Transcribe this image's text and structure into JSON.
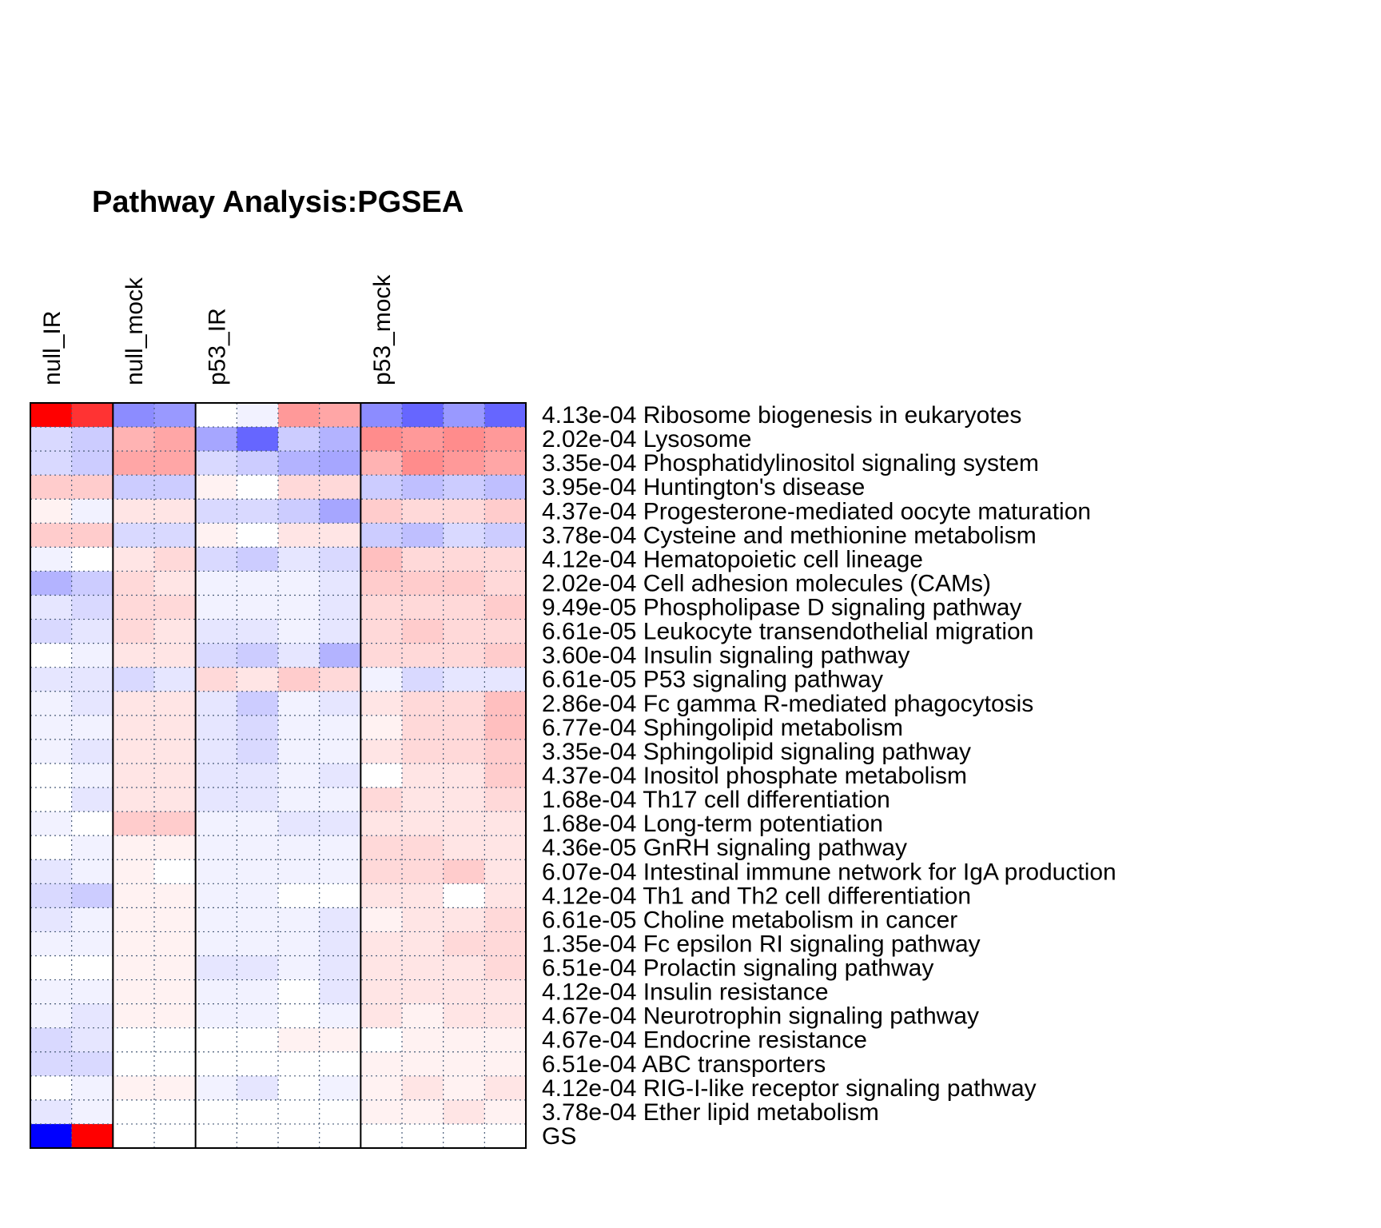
{
  "chart_data": {
    "type": "heatmap",
    "title": "Pathway Analysis:PGSEA",
    "color_scale": {
      "low": "#0000ff",
      "mid": "#ffffff",
      "high": "#ff0000",
      "range": [
        -1,
        1
      ]
    },
    "groups": [
      {
        "label": "null_IR",
        "columns": 2
      },
      {
        "label": "null_mock",
        "columns": 2
      },
      {
        "label": "p53_IR",
        "columns": 4
      },
      {
        "label": "p53_mock",
        "columns": 4
      }
    ],
    "rows": [
      {
        "pvalue": "4.13e-04",
        "pathway": "Ribosome biogenesis in eukaryotes",
        "values": [
          1.0,
          0.8,
          -0.45,
          -0.4,
          0.0,
          -0.05,
          0.4,
          0.35,
          -0.45,
          -0.6,
          -0.4,
          -0.6
        ]
      },
      {
        "pvalue": "2.02e-04",
        "pathway": "Lysosome",
        "values": [
          -0.15,
          -0.2,
          0.3,
          0.35,
          -0.35,
          -0.6,
          -0.2,
          -0.3,
          0.45,
          0.4,
          0.45,
          0.4
        ]
      },
      {
        "pvalue": "3.35e-04",
        "pathway": "Phosphatidylinositol signaling system",
        "values": [
          -0.15,
          -0.2,
          0.35,
          0.35,
          -0.15,
          -0.2,
          -0.3,
          -0.35,
          0.3,
          0.45,
          0.4,
          0.35
        ]
      },
      {
        "pvalue": "3.95e-04",
        "pathway": "Huntington's disease",
        "values": [
          0.2,
          0.2,
          -0.2,
          -0.2,
          0.05,
          0.0,
          0.15,
          0.15,
          -0.2,
          -0.25,
          -0.2,
          -0.25
        ]
      },
      {
        "pvalue": "4.37e-04",
        "pathway": "Progesterone-mediated oocyte maturation",
        "values": [
          0.05,
          -0.05,
          0.1,
          0.1,
          -0.15,
          -0.15,
          -0.2,
          -0.35,
          0.2,
          0.15,
          0.15,
          0.2
        ]
      },
      {
        "pvalue": "3.78e-04",
        "pathway": "Cysteine and methionine metabolism",
        "values": [
          0.2,
          0.2,
          -0.15,
          -0.15,
          0.05,
          0.0,
          0.1,
          0.1,
          -0.2,
          -0.25,
          -0.15,
          -0.2
        ]
      },
      {
        "pvalue": "4.12e-04",
        "pathway": "Hematopoietic cell lineage",
        "values": [
          -0.05,
          0.0,
          0.1,
          0.15,
          -0.15,
          -0.2,
          -0.1,
          -0.15,
          0.25,
          0.15,
          0.15,
          0.15
        ]
      },
      {
        "pvalue": "2.02e-04",
        "pathway": "Cell adhesion molecules (CAMs)",
        "values": [
          -0.3,
          -0.2,
          0.15,
          0.1,
          -0.05,
          -0.05,
          -0.05,
          -0.1,
          0.2,
          0.2,
          0.2,
          0.15
        ]
      },
      {
        "pvalue": "9.49e-05",
        "pathway": "Phospholipase D signaling pathway",
        "values": [
          -0.1,
          -0.15,
          0.15,
          0.15,
          -0.05,
          -0.05,
          -0.05,
          -0.1,
          0.15,
          0.15,
          0.15,
          0.2
        ]
      },
      {
        "pvalue": "6.61e-05",
        "pathway": "Leukocyte transendothelial migration",
        "values": [
          -0.15,
          -0.1,
          0.15,
          0.1,
          -0.1,
          -0.1,
          -0.05,
          -0.1,
          0.15,
          0.2,
          0.15,
          0.15
        ]
      },
      {
        "pvalue": "3.60e-04",
        "pathway": "Insulin signaling pathway",
        "values": [
          0.0,
          -0.05,
          0.1,
          0.1,
          -0.15,
          -0.2,
          -0.1,
          -0.3,
          0.15,
          0.15,
          0.15,
          0.2
        ]
      },
      {
        "pvalue": "6.61e-05",
        "pathway": "P53 signaling pathway",
        "values": [
          -0.1,
          -0.1,
          -0.15,
          -0.1,
          0.15,
          0.1,
          0.2,
          0.15,
          -0.05,
          -0.15,
          -0.1,
          -0.1
        ]
      },
      {
        "pvalue": "2.86e-04",
        "pathway": "Fc gamma R-mediated phagocytosis",
        "values": [
          -0.05,
          -0.1,
          0.1,
          0.1,
          -0.1,
          -0.2,
          -0.05,
          -0.1,
          0.1,
          0.15,
          0.15,
          0.25
        ]
      },
      {
        "pvalue": "6.77e-04",
        "pathway": "Sphingolipid metabolism",
        "values": [
          -0.05,
          -0.05,
          0.1,
          0.1,
          -0.1,
          -0.15,
          -0.05,
          -0.05,
          0.05,
          0.15,
          0.15,
          0.25
        ]
      },
      {
        "pvalue": "3.35e-04",
        "pathway": "Sphingolipid signaling pathway",
        "values": [
          -0.05,
          -0.1,
          0.1,
          0.1,
          -0.1,
          -0.15,
          -0.05,
          -0.05,
          0.1,
          0.15,
          0.15,
          0.2
        ]
      },
      {
        "pvalue": "4.37e-04",
        "pathway": "Inositol phosphate metabolism",
        "values": [
          0.0,
          -0.05,
          0.1,
          0.1,
          -0.1,
          -0.1,
          -0.05,
          -0.1,
          0.0,
          0.1,
          0.1,
          0.2
        ]
      },
      {
        "pvalue": "1.68e-04",
        "pathway": "Th17 cell differentiation",
        "values": [
          0.0,
          -0.1,
          0.1,
          0.1,
          -0.1,
          -0.1,
          -0.05,
          -0.05,
          0.15,
          0.1,
          0.1,
          0.15
        ]
      },
      {
        "pvalue": "1.68e-04",
        "pathway": "Long-term potentiation",
        "values": [
          -0.05,
          0.0,
          0.2,
          0.2,
          -0.05,
          -0.05,
          -0.1,
          -0.1,
          0.1,
          0.1,
          0.1,
          0.1
        ]
      },
      {
        "pvalue": "4.36e-05",
        "pathway": "GnRH signaling pathway",
        "values": [
          0.0,
          -0.05,
          0.05,
          0.05,
          -0.05,
          -0.05,
          -0.05,
          -0.05,
          0.15,
          0.15,
          0.1,
          0.1
        ]
      },
      {
        "pvalue": "6.07e-04",
        "pathway": "Intestinal immune network for IgA production",
        "values": [
          -0.1,
          -0.05,
          0.05,
          0.0,
          -0.05,
          -0.05,
          -0.05,
          -0.05,
          0.15,
          0.15,
          0.2,
          0.1
        ]
      },
      {
        "pvalue": "4.12e-04",
        "pathway": "Th1 and Th2 cell differentiation",
        "values": [
          -0.15,
          -0.2,
          0.05,
          0.05,
          -0.05,
          -0.05,
          0.0,
          0.0,
          0.1,
          0.1,
          0.0,
          0.1
        ]
      },
      {
        "pvalue": "6.61e-05",
        "pathway": "Choline metabolism in cancer",
        "values": [
          -0.1,
          -0.05,
          0.05,
          0.05,
          -0.05,
          -0.05,
          -0.05,
          -0.1,
          0.05,
          0.1,
          0.1,
          0.15
        ]
      },
      {
        "pvalue": "1.35e-04",
        "pathway": "Fc epsilon RI signaling pathway",
        "values": [
          -0.05,
          -0.05,
          0.05,
          0.05,
          -0.05,
          -0.05,
          -0.05,
          -0.1,
          0.1,
          0.1,
          0.15,
          0.15
        ]
      },
      {
        "pvalue": "6.51e-04",
        "pathway": "Prolactin signaling pathway",
        "values": [
          0.0,
          0.0,
          0.05,
          0.05,
          -0.1,
          -0.1,
          -0.05,
          -0.1,
          0.1,
          0.1,
          0.1,
          0.15
        ]
      },
      {
        "pvalue": "4.12e-04",
        "pathway": "Insulin resistance",
        "values": [
          -0.05,
          -0.05,
          0.05,
          0.05,
          -0.05,
          -0.05,
          0.0,
          -0.1,
          0.1,
          0.1,
          0.1,
          0.1
        ]
      },
      {
        "pvalue": "4.67e-04",
        "pathway": "Neurotrophin signaling pathway",
        "values": [
          -0.05,
          -0.1,
          0.05,
          0.05,
          -0.05,
          -0.05,
          0.0,
          -0.05,
          0.1,
          0.05,
          0.1,
          0.1
        ]
      },
      {
        "pvalue": "4.67e-04",
        "pathway": "Endocrine resistance",
        "values": [
          -0.15,
          -0.1,
          0.0,
          0.0,
          0.0,
          0.0,
          0.05,
          0.05,
          0.0,
          0.05,
          0.05,
          0.05
        ]
      },
      {
        "pvalue": "6.51e-04",
        "pathway": "ABC transporters",
        "values": [
          -0.15,
          -0.15,
          0.0,
          0.0,
          0.0,
          0.0,
          0.0,
          0.0,
          0.05,
          0.05,
          0.05,
          0.05
        ]
      },
      {
        "pvalue": "4.12e-04",
        "pathway": "RIG-I-like receptor signaling pathway",
        "values": [
          0.0,
          -0.05,
          0.05,
          0.05,
          -0.05,
          -0.1,
          0.0,
          -0.05,
          0.05,
          0.1,
          0.05,
          0.1
        ]
      },
      {
        "pvalue": "3.78e-04",
        "pathway": "Ether lipid metabolism",
        "values": [
          -0.1,
          -0.05,
          0.0,
          0.0,
          0.0,
          0.0,
          0.0,
          0.0,
          0.05,
          0.05,
          0.1,
          0.05
        ]
      },
      {
        "pvalue": "",
        "pathway": "GS",
        "values": [
          -1.0,
          1.0,
          0.0,
          0.0,
          0.0,
          0.0,
          0.0,
          0.0,
          0.0,
          0.0,
          0.0,
          0.0
        ]
      }
    ]
  }
}
